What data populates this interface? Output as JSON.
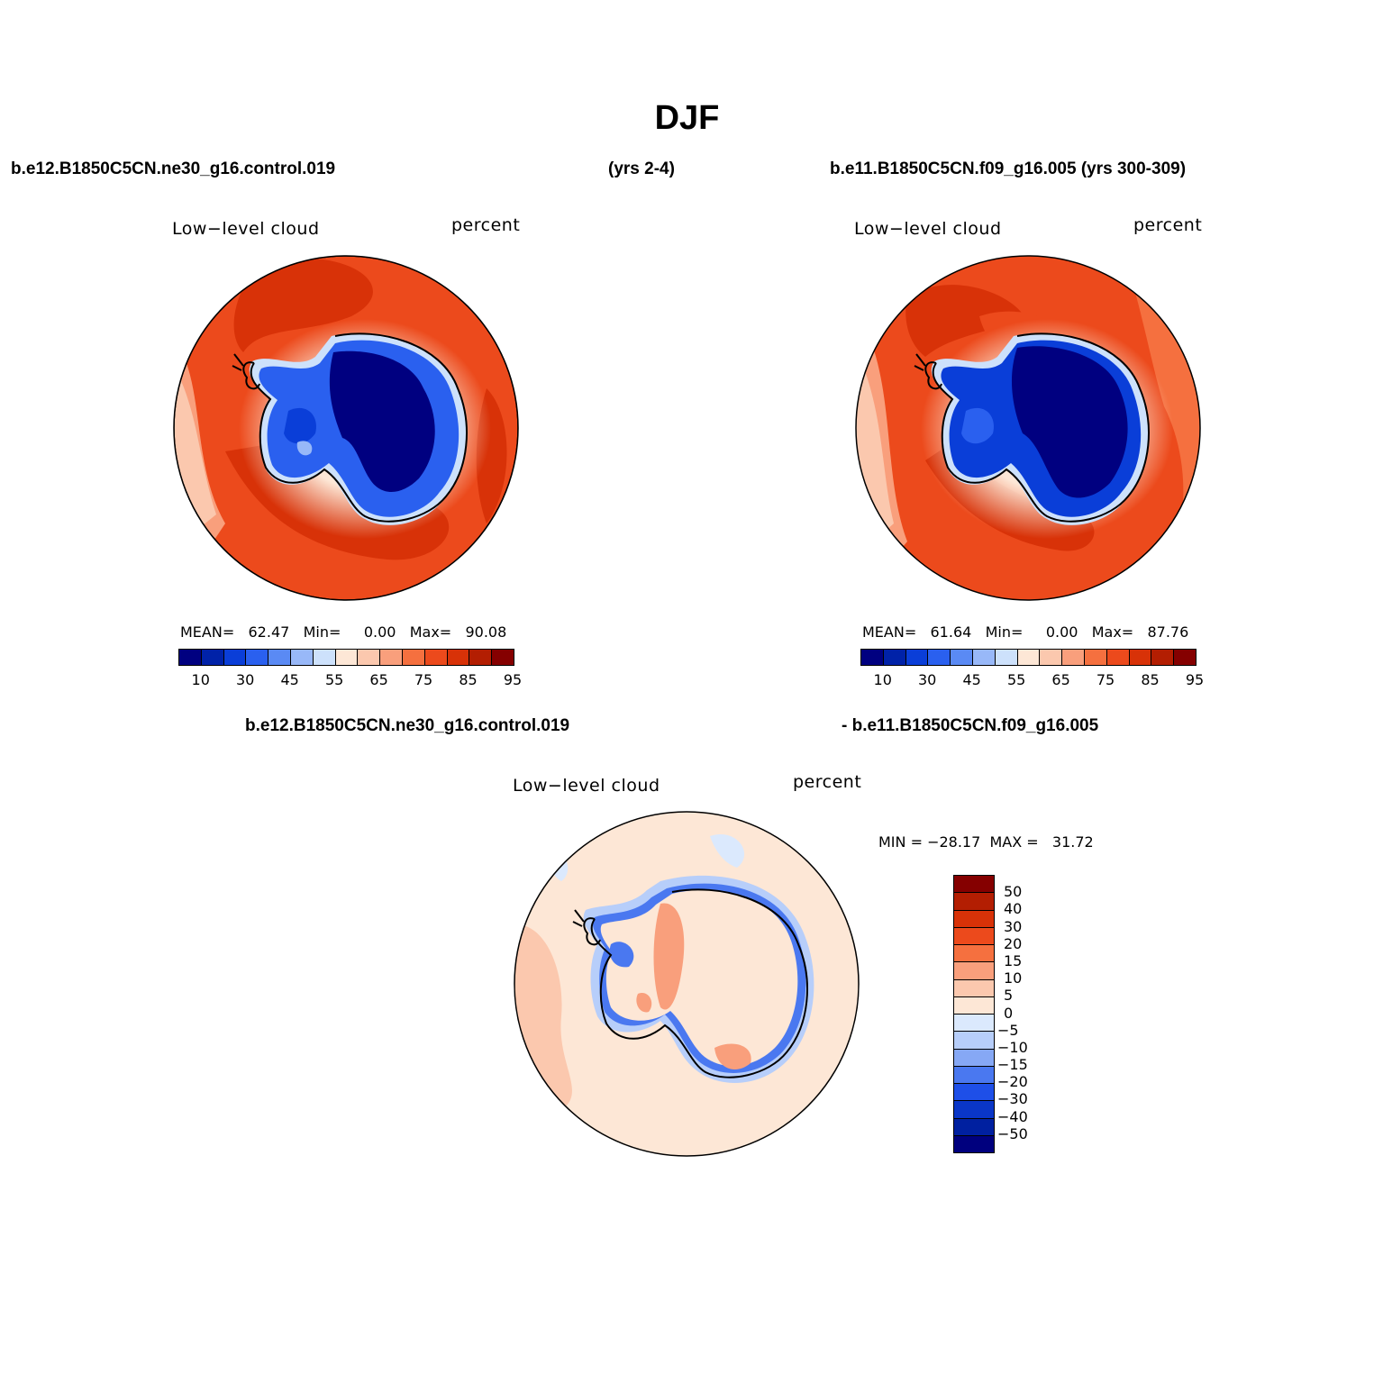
{
  "header": {
    "title": "DJF",
    "case_a": "b.e12.B1850C5CN.ne30_g16.control.019",
    "years_a": "(yrs 2-4)",
    "case_b": "b.e11.B1850C5CN.f09_g16.005 (yrs 300-309)",
    "diff_case_a": "b.e12.B1850C5CN.ne30_g16.control.019",
    "diff_case_b": "- b.e11.B1850C5CN.f09_g16.005"
  },
  "panels": [
    {
      "variable": "Low−level cloud",
      "units": "percent",
      "stats": {
        "mean_label": "MEAN=",
        "mean": "62.47",
        "min_label": "Min=",
        "min": "0.00",
        "max_label": "Max=",
        "max": "90.08"
      }
    },
    {
      "variable": "Low−level cloud",
      "units": "percent",
      "stats": {
        "mean_label": "MEAN=",
        "mean": "61.64",
        "min_label": "Min=",
        "min": "0.00",
        "max_label": "Max=",
        "max": "87.76"
      }
    }
  ],
  "diff_panel": {
    "variable": "Low−level cloud",
    "units": "percent",
    "stats": "MIN = −28.17  MAX =   31.72"
  },
  "abs_colorbar": {
    "colors": [
      "#000080",
      "#0022a8",
      "#0a3ed8",
      "#2a60ef",
      "#5a8af4",
      "#98b8f8",
      "#cde1fb",
      "#fde7d6",
      "#fbc8ae",
      "#f99f7c",
      "#f5703f",
      "#ec4a1c",
      "#d83208",
      "#b31e02",
      "#850000"
    ],
    "tick_labels": [
      "10",
      "30",
      "45",
      "55",
      "65",
      "75",
      "85",
      "95"
    ]
  },
  "diff_colorbar": {
    "colors_top_to_bottom": [
      "#850000",
      "#b31e02",
      "#d83208",
      "#ec4a1c",
      "#f5703f",
      "#f99f7c",
      "#fbc8ae",
      "#fde7d6",
      "#dbe9fd",
      "#b7cefa",
      "#86a8f5",
      "#4a78f0",
      "#1e4fe8",
      "#0a36c7",
      "#0020a0",
      "#00007e"
    ],
    "tick_labels": [
      "50",
      "40",
      "30",
      "20",
      "15",
      "10",
      "5",
      "0",
      "−5",
      "−10",
      "−15",
      "−20",
      "−30",
      "−40",
      "−50"
    ]
  },
  "colors": {
    "ocean_high": "#e1380c",
    "ocean_mid": "#f5703f",
    "ice_dark": "#000080",
    "coast": "#000000"
  }
}
